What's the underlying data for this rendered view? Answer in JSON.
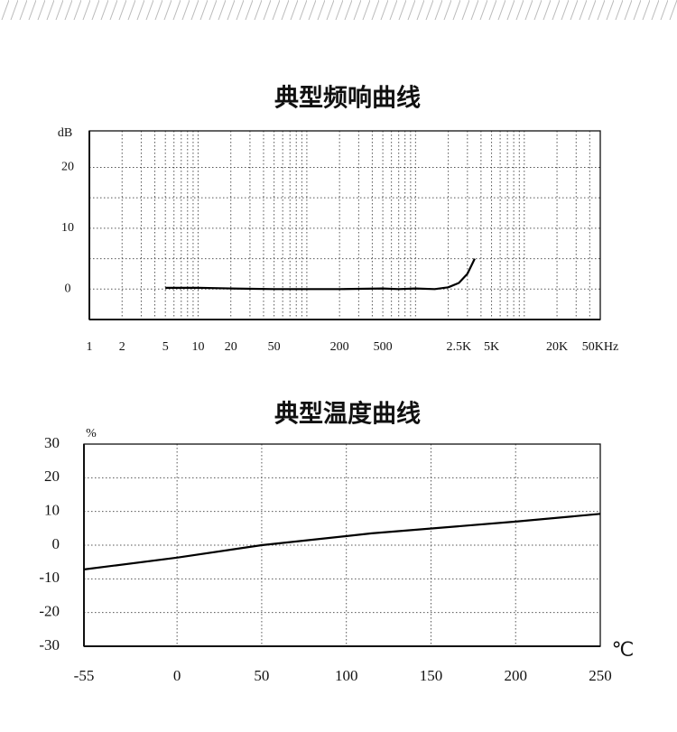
{
  "chart_data": [
    {
      "type": "line",
      "title": "典型频响曲线",
      "y_label": "dB",
      "log_x": true,
      "grid": true,
      "color": "#000000",
      "x": [
        5,
        10,
        20,
        50,
        100,
        200,
        500,
        700,
        1000,
        1500,
        2000,
        2500,
        3000,
        3500
      ],
      "values": [
        0.2,
        0.2,
        0.1,
        0,
        0,
        0,
        0.1,
        0,
        0.1,
        0,
        0.3,
        1,
        2.5,
        5
      ],
      "xlim": [
        1,
        50000
      ],
      "ylim": [
        -5,
        26
      ],
      "xticks": [
        1,
        2,
        5,
        10,
        20,
        50,
        200,
        500,
        {
          "value": 2500,
          "label": "2.5K"
        },
        {
          "value": 5000,
          "label": "5K"
        },
        {
          "value": 20000,
          "label": "20K"
        },
        {
          "value": 50000,
          "label": "50KHz"
        }
      ],
      "yticks": [
        0,
        10,
        20
      ]
    },
    {
      "type": "line",
      "title": "典型温度曲线",
      "y_label": "%",
      "x_label": "℃",
      "grid": true,
      "color": "#000000",
      "x": [
        -55,
        0,
        50,
        115,
        200,
        250
      ],
      "values": [
        -7.2,
        -3.7,
        0,
        3.5,
        7,
        9.3
      ],
      "xlim": [
        -55,
        250
      ],
      "ylim": [
        -30,
        30
      ],
      "xticks": [
        -55,
        0,
        50,
        100,
        150,
        200,
        250
      ],
      "yticks": [
        -30,
        -20,
        -10,
        0,
        10,
        20,
        30
      ]
    }
  ]
}
